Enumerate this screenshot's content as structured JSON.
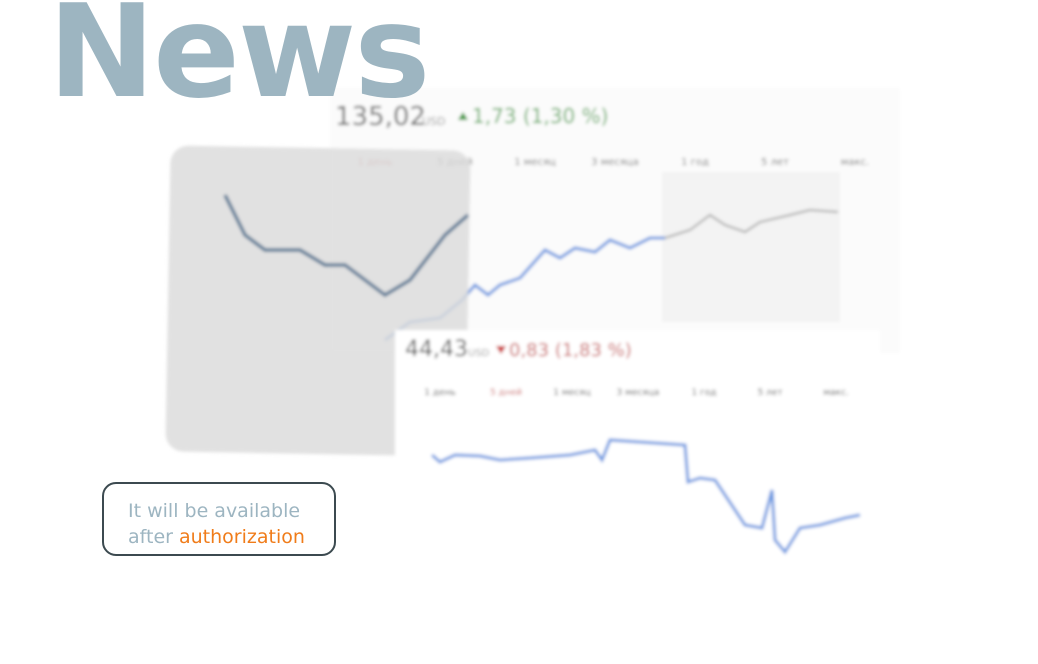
{
  "header": {
    "title": "News"
  },
  "cards": [
    {
      "price": "135,02",
      "currency": "USD",
      "change": "1,73 (1,30 %)"
    },
    {
      "price": "44,43",
      "currency": "USD",
      "change": "0,83 (1,83 %)"
    }
  ],
  "tabs": [
    "1 день",
    "5 дней",
    "1 месяц",
    "3 месяца",
    "1 год",
    "5 лет",
    "макс."
  ],
  "notice": {
    "line1": "It will be available",
    "line2": "after",
    "highlight": "authorization"
  }
}
